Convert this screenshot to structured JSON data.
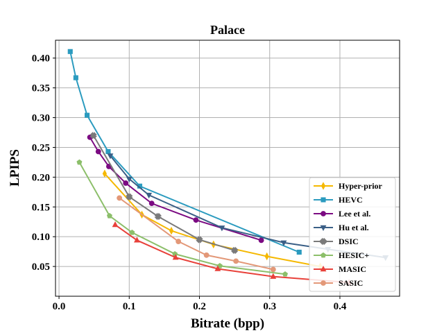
{
  "chart_data": {
    "type": "line",
    "title": "Palace",
    "xlabel": "Bitrate (bpp)",
    "ylabel": "LPIPS",
    "xlim": [
      -0.005,
      0.485
    ],
    "ylim": [
      0.0,
      0.43
    ],
    "xticks": [
      0.0,
      0.1,
      0.2,
      0.3,
      0.4
    ],
    "xtick_labels": [
      "0.0",
      "0.1",
      "0.2",
      "0.3",
      "0.4"
    ],
    "yticks": [
      0.05,
      0.1,
      0.15,
      0.2,
      0.25,
      0.3,
      0.35,
      0.4
    ],
    "ytick_labels": [
      "0.05",
      "0.10",
      "0.15",
      "0.20",
      "0.25",
      "0.30",
      "0.35",
      "0.40"
    ],
    "grid": true,
    "legend_position": "lower-right",
    "series": [
      {
        "name": "Hyper-prior",
        "color": "#f5b800",
        "marker": "thin-diamond",
        "x": [
          0.065,
          0.118,
          0.16,
          0.22,
          0.296,
          0.372
        ],
        "y": [
          0.206,
          0.137,
          0.11,
          0.087,
          0.067,
          0.05
        ]
      },
      {
        "name": "HEVC",
        "color": "#2b9bbf",
        "marker": "square",
        "x": [
          0.016,
          0.024,
          0.04,
          0.07,
          0.115,
          0.342
        ],
        "y": [
          0.411,
          0.367,
          0.304,
          0.243,
          0.185,
          0.074
        ]
      },
      {
        "name": "Lee et al.",
        "color": "#7b0a82",
        "marker": "circle",
        "x": [
          0.044,
          0.056,
          0.071,
          0.095,
          0.132,
          0.195,
          0.288
        ],
        "y": [
          0.267,
          0.243,
          0.218,
          0.19,
          0.156,
          0.128,
          0.094
        ]
      },
      {
        "name": "Hu et al.",
        "color": "#3a5f86",
        "marker": "triangle-down",
        "x": [
          0.073,
          0.1,
          0.128,
          0.232,
          0.32,
          0.383,
          0.465
        ],
        "y": [
          0.236,
          0.197,
          0.17,
          0.115,
          0.09,
          0.079,
          0.065
        ]
      },
      {
        "name": "DSIC",
        "color": "#7a7a7a",
        "marker": "x-filled",
        "x": [
          0.049,
          0.1,
          0.141,
          0.2,
          0.25
        ],
        "y": [
          0.27,
          0.167,
          0.134,
          0.095,
          0.077
        ]
      },
      {
        "name": "HESIC+",
        "color": "#8cbf6a",
        "marker": "pentagon",
        "x": [
          0.029,
          0.072,
          0.104,
          0.165,
          0.229,
          0.322
        ],
        "y": [
          0.225,
          0.135,
          0.107,
          0.071,
          0.051,
          0.037
        ]
      },
      {
        "name": "MASIC",
        "color": "#e8413a",
        "marker": "triangle-up",
        "x": [
          0.08,
          0.111,
          0.166,
          0.226,
          0.305,
          0.413
        ],
        "y": [
          0.12,
          0.094,
          0.065,
          0.046,
          0.033,
          0.023
        ]
      },
      {
        "name": "SASIC",
        "color": "#e39878",
        "marker": "circle",
        "x": [
          0.086,
          0.17,
          0.21,
          0.252,
          0.305
        ],
        "y": [
          0.165,
          0.092,
          0.069,
          0.059,
          0.045
        ]
      }
    ]
  }
}
